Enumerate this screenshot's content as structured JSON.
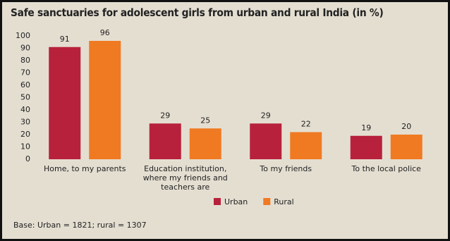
{
  "chart_data": {
    "type": "bar",
    "title": "Safe sanctuaries for adolescent girls from urban and rural India (in %)",
    "categories": [
      "Home, to my parents",
      "Education institution, where my friends and teachers are",
      "To my friends",
      "To the local police"
    ],
    "series": [
      {
        "name": "Urban",
        "color": "#b8213b",
        "values": [
          91,
          29,
          29,
          19
        ]
      },
      {
        "name": "Rural",
        "color": "#f07a22",
        "values": [
          96,
          25,
          22,
          20
        ]
      }
    ],
    "ylim": [
      0,
      100
    ],
    "yticks": [
      0,
      10,
      20,
      30,
      40,
      50,
      60,
      70,
      80,
      90,
      100
    ],
    "grid": false,
    "legend": "bottom",
    "note": "Base: Urban = 1821; rural = 1307"
  }
}
